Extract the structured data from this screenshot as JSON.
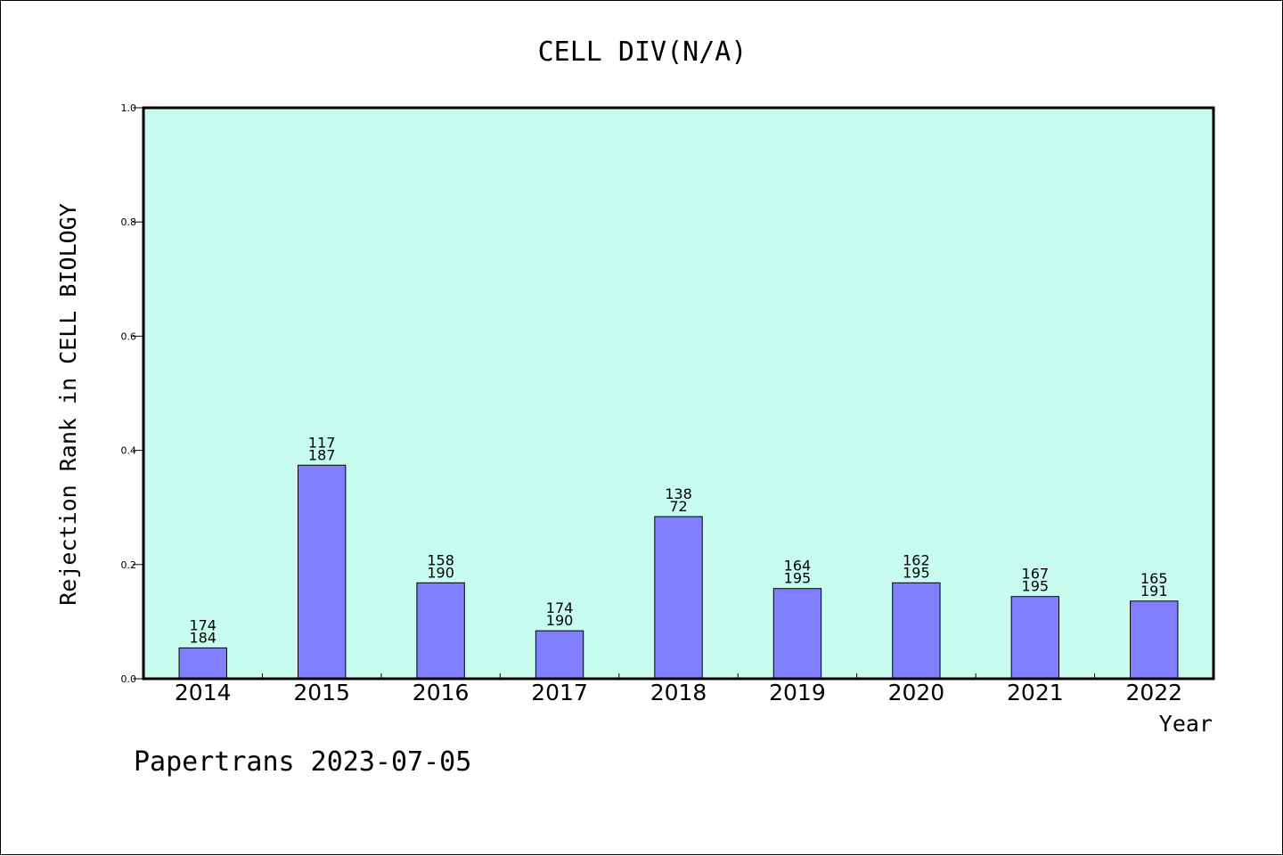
{
  "chart_data": {
    "type": "bar",
    "title": "CELL DIV(N/A)",
    "xlabel": "Year",
    "ylabel": "Rejection Rank in CELL BIOLOGY",
    "categories": [
      "2014",
      "2015",
      "2016",
      "2017",
      "2018",
      "2019",
      "2020",
      "2021",
      "2022"
    ],
    "values": [
      0.054,
      0.374,
      0.168,
      0.084,
      0.284,
      0.158,
      0.168,
      0.144,
      0.136
    ],
    "labels_top": [
      "174",
      "117",
      "158",
      "174",
      "138",
      "164",
      "162",
      "167",
      "165"
    ],
    "labels_bottom": [
      "184",
      "187",
      "190",
      "190",
      "72",
      "195",
      "195",
      "195",
      "191"
    ],
    "ylim": [
      0,
      1.0
    ],
    "yticks": [
      "0.0",
      "0.2",
      "0.4",
      "0.6",
      "0.8",
      "1.0"
    ],
    "legend": "none",
    "grid": false
  },
  "footer": "Papertrans 2023-07-05",
  "colors": {
    "plot_background": "#c8fcee",
    "bar_fill": "#8080ff",
    "bar_edge": "#000000",
    "figure_background": "#ffffff"
  }
}
